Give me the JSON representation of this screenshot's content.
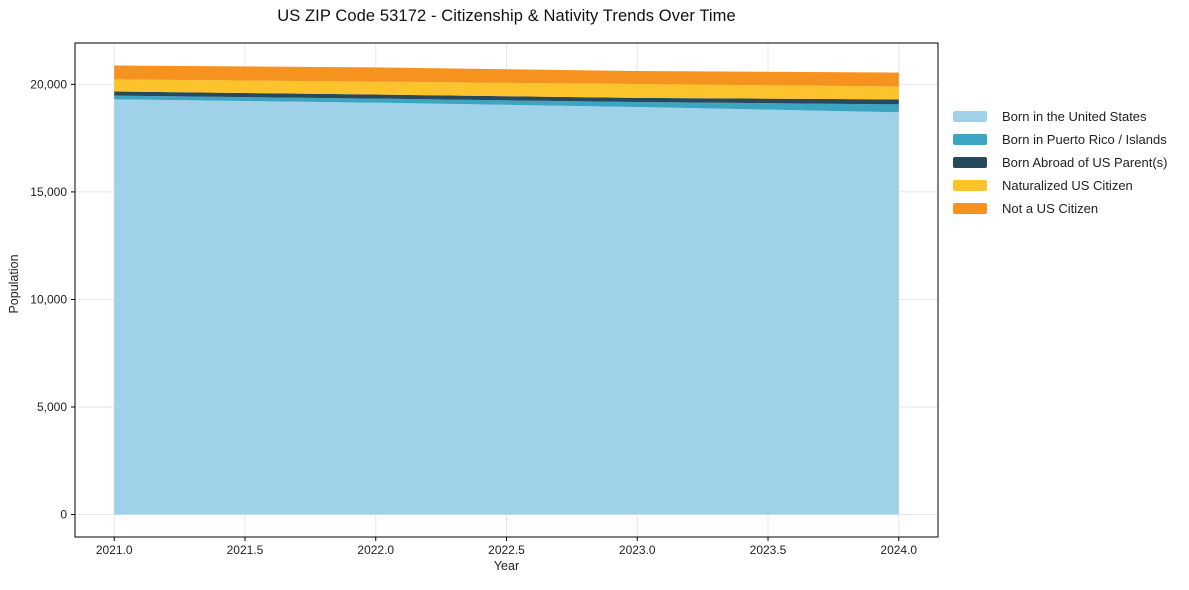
{
  "colors": {
    "grid": "#e7e7e7",
    "axis": "#000000",
    "text": "#222222",
    "background": "#ffffff"
  },
  "chart_data": {
    "type": "area",
    "stacked": true,
    "title": "US ZIP Code 53172 - Citizenship & Nativity Trends Over Time",
    "xlabel": "Year",
    "ylabel": "Population",
    "grid": true,
    "legend_position": "right of plot, no border",
    "x": [
      2021,
      2022,
      2023,
      2024
    ],
    "series": [
      {
        "name": "Born in the United States",
        "color": "#9FD2E8",
        "values": [
          19300,
          19150,
          18950,
          18700
        ]
      },
      {
        "name": "Born in Puerto Rico / Islands",
        "color": "#3BA5C2",
        "values": [
          180,
          190,
          230,
          370
        ]
      },
      {
        "name": "Born Abroad of US Parent(s)",
        "color": "#27495C",
        "values": [
          190,
          190,
          190,
          230
        ]
      },
      {
        "name": "Naturalized US Citizen",
        "color": "#FCC32D",
        "values": [
          560,
          600,
          650,
          600
        ]
      },
      {
        "name": "Not a US Citizen",
        "color": "#F6921E",
        "values": [
          650,
          660,
          600,
          650
        ]
      }
    ],
    "stacked_totals": [
      20880,
      20790,
      20620,
      20550
    ],
    "xlim": [
      2020.85,
      2024.15
    ],
    "ylim": [
      -1044,
      21924
    ],
    "x_tick_values": [
      2021.0,
      2021.5,
      2022.0,
      2022.5,
      2023.0,
      2023.5,
      2024.0
    ],
    "x_ticks": [
      "2021.0",
      "2021.5",
      "2022.0",
      "2022.5",
      "2023.0",
      "2023.5",
      "2024.0"
    ],
    "y_tick_values": [
      0,
      5000,
      10000,
      15000,
      20000
    ],
    "y_ticks": [
      "0",
      "5,000",
      "10,000",
      "15,000",
      "20,000"
    ]
  }
}
